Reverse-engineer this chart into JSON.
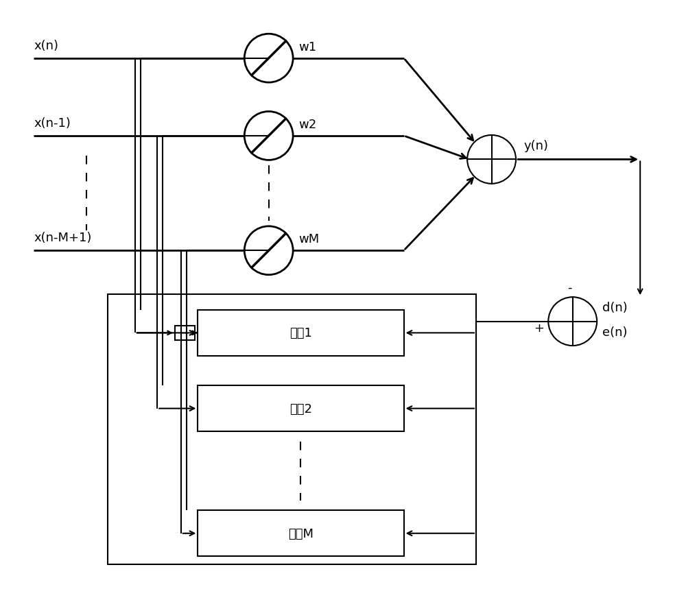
{
  "fig_width": 10.0,
  "fig_height": 8.95,
  "bg_color": "#ffffff",
  "lw": 1.5,
  "lw_thick": 2.0,
  "labels": {
    "xn": "x(n)",
    "xn1": "x(n-1)",
    "xnM": "x(n-M+1)",
    "w1": "w1",
    "w2": "w2",
    "wM": "wM",
    "yn": "y(n)",
    "dn": "d(n)",
    "en": "e(n)",
    "ctrl1": "控制1",
    "ctrl2": "控制2",
    "ctrlM": "控制M",
    "minus": "-",
    "plus": "+"
  },
  "font_size": 13,
  "font_size_ctrl": 13
}
